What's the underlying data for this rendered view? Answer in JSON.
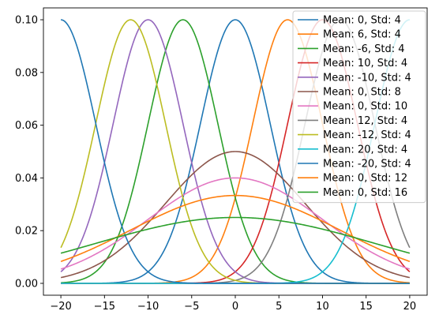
{
  "chart_data": {
    "type": "line",
    "title": "",
    "xlabel": "",
    "ylabel": "",
    "xlim": [
      -22,
      22
    ],
    "ylim": [
      -0.0045,
      0.1045
    ],
    "xticks": [
      -20,
      -15,
      -10,
      -5,
      0,
      5,
      10,
      15,
      20
    ],
    "xtick_labels": [
      "−20",
      "−15",
      "−10",
      "−5",
      "0",
      "5",
      "10",
      "15",
      "20"
    ],
    "yticks": [
      0.0,
      0.02,
      0.04,
      0.06,
      0.08,
      0.1
    ],
    "ytick_labels": [
      "0.00",
      "0.02",
      "0.04",
      "0.06",
      "0.08",
      "0.10"
    ],
    "grid": false,
    "legend_position": "top-right",
    "x_range": [
      -20,
      20
    ],
    "series": [
      {
        "name": "Mean: 0, Std: 4",
        "mean": 0,
        "std": 4,
        "color": "#1f77b4"
      },
      {
        "name": "Mean: 6, Std: 4",
        "mean": 6,
        "std": 4,
        "color": "#ff7f0e"
      },
      {
        "name": "Mean: -6, Std: 4",
        "mean": -6,
        "std": 4,
        "color": "#2ca02c"
      },
      {
        "name": "Mean: 10, Std: 4",
        "mean": 10,
        "std": 4,
        "color": "#d62728"
      },
      {
        "name": "Mean: -10, Std: 4",
        "mean": -10,
        "std": 4,
        "color": "#9467bd"
      },
      {
        "name": "Mean: 0, Std: 8",
        "mean": 0,
        "std": 8,
        "color": "#8c564b"
      },
      {
        "name": "Mean: 0, Std: 10",
        "mean": 0,
        "std": 10,
        "color": "#e377c2"
      },
      {
        "name": "Mean: 12, Std: 4",
        "mean": 12,
        "std": 4,
        "color": "#7f7f7f"
      },
      {
        "name": "Mean: -12, Std: 4",
        "mean": -12,
        "std": 4,
        "color": "#bcbd22"
      },
      {
        "name": "Mean: 20, Std: 4",
        "mean": 20,
        "std": 4,
        "color": "#17becf"
      },
      {
        "name": "Mean: -20, Std: 4",
        "mean": -20,
        "std": 4,
        "color": "#1f77b4"
      },
      {
        "name": "Mean: 0, Std: 12",
        "mean": 0,
        "std": 12,
        "color": "#ff7f0e"
      },
      {
        "name": "Mean: 0, Std: 16",
        "mean": 0,
        "std": 16,
        "color": "#2ca02c"
      }
    ]
  }
}
